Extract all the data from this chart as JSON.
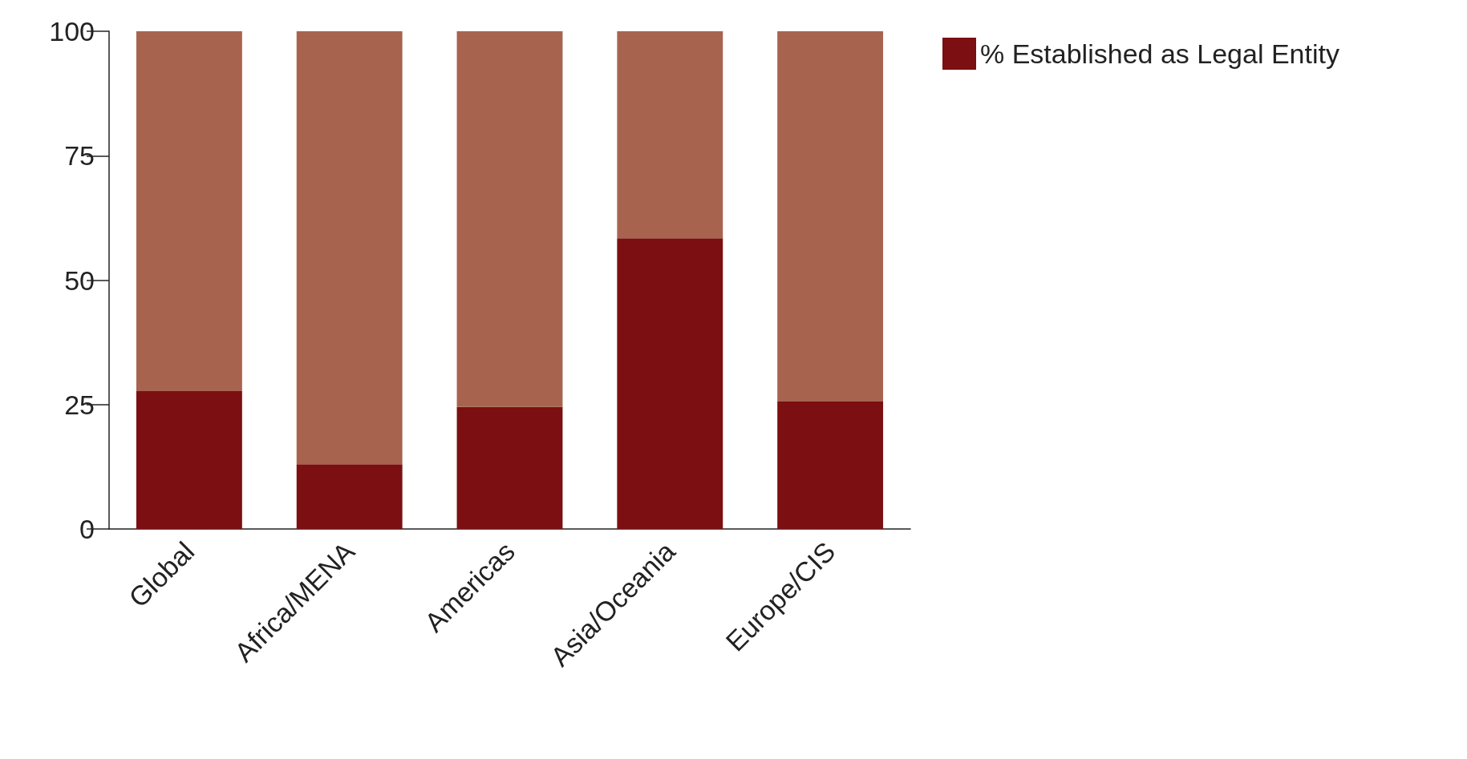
{
  "chart_data": {
    "type": "bar",
    "stacked": true,
    "categories": [
      "Global",
      "Africa/MENA",
      "Americas",
      "Asia/Oceania",
      "Europe/CIS"
    ],
    "series": [
      {
        "name": "% Established as Legal Entity",
        "color": "#7b0f11",
        "values": [
          27.7,
          13,
          24.5,
          58.4,
          25.6
        ]
      },
      {
        "color": "#a8634f",
        "values": [
          72.3,
          87,
          75.5,
          41.6,
          74.4
        ]
      }
    ],
    "ylim": [
      0,
      100
    ],
    "yticks": [
      0,
      25,
      50,
      75,
      100
    ],
    "grid": false,
    "legend": "top right"
  }
}
